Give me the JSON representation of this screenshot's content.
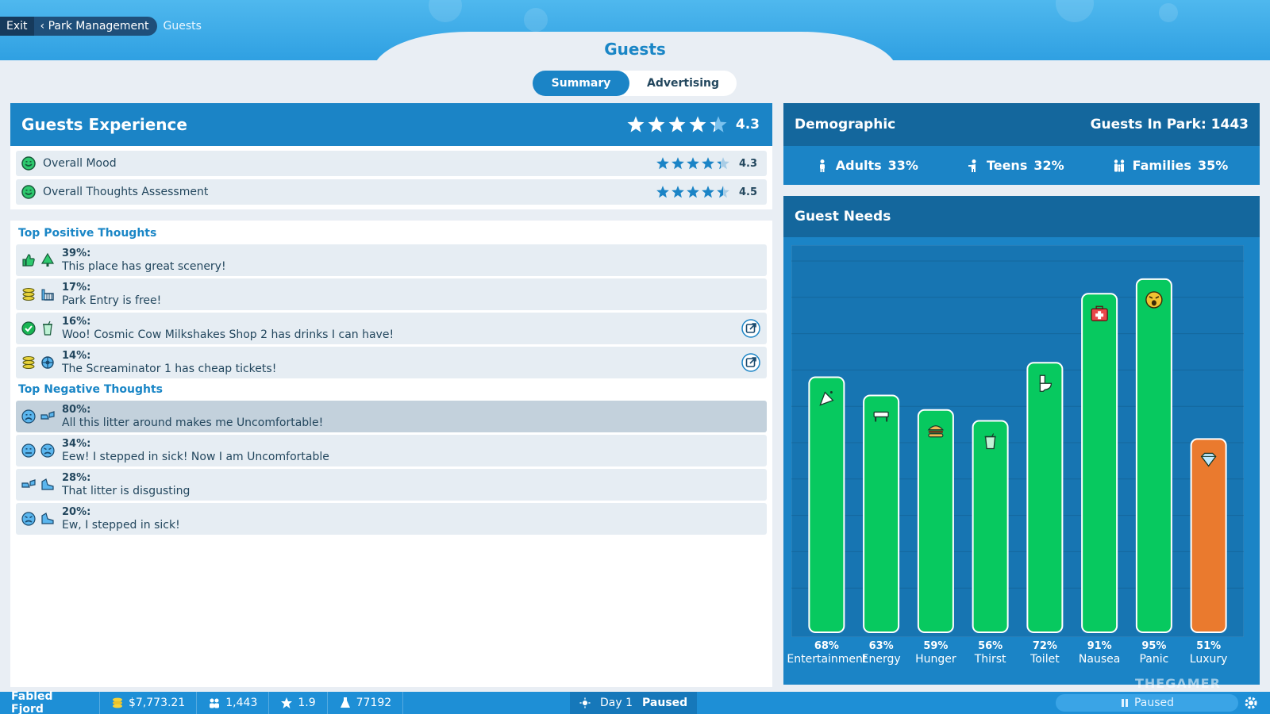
{
  "nav": {
    "exit_label": "Exit",
    "back_label": "Park Management",
    "current_label": "Guests"
  },
  "page_title": "Guests",
  "tabs": [
    {
      "label": "Summary",
      "active": true
    },
    {
      "label": "Advertising",
      "active": false
    }
  ],
  "experience": {
    "title": "Guests Experience",
    "rating": "4.3",
    "rating_value": 4.3,
    "rows": [
      {
        "label": "Overall Mood",
        "value": "4.3",
        "stars": 4.3
      },
      {
        "label": "Overall Thoughts Assessment",
        "value": "4.5",
        "stars": 4.5
      }
    ]
  },
  "thoughts": {
    "positive_title": "Top Positive Thoughts",
    "negative_title": "Top Negative Thoughts",
    "positive": [
      {
        "pct": "39%:",
        "text": "This place has great scenery!",
        "icons": [
          "thumbs-up-icon",
          "tree-icon"
        ],
        "link": false
      },
      {
        "pct": "17%:",
        "text": "Park Entry is free!",
        "icons": [
          "coins-icon",
          "gate-icon"
        ],
        "link": false
      },
      {
        "pct": "16%:",
        "text": "Woo! Cosmic Cow Milkshakes Shop 2 has drinks I can have!",
        "icons": [
          "checkmark-icon",
          "cup-icon"
        ],
        "link": true
      },
      {
        "pct": "14%:",
        "text": "The Screaminator 1 has cheap tickets!",
        "icons": [
          "coins-icon",
          "ride-icon"
        ],
        "link": true
      }
    ],
    "negative": [
      {
        "pct": "80%:",
        "text": "All this litter around makes me Uncomfortable!",
        "icons": [
          "sad-face-icon",
          "litter-icon"
        ],
        "link": false,
        "selected": true
      },
      {
        "pct": "34%:",
        "text": "Eew! I stepped in sick! Now I am Uncomfortable",
        "icons": [
          "meh-face-icon",
          "sick-face-icon"
        ],
        "link": false
      },
      {
        "pct": "28%:",
        "text": "That litter is disgusting",
        "icons": [
          "litter-icon",
          "shoe-icon"
        ],
        "link": false
      },
      {
        "pct": "20%:",
        "text": "Ew, I stepped in sick!",
        "icons": [
          "sick-face-icon",
          "shoe-icon"
        ],
        "link": false
      }
    ]
  },
  "demographic": {
    "title": "Demographic",
    "guests_label": "Guests In Park: 1443",
    "groups": [
      {
        "label": "Adults",
        "value": "33%",
        "icon": "adult-icon"
      },
      {
        "label": "Teens",
        "value": "32%",
        "icon": "teen-icon"
      },
      {
        "label": "Families",
        "value": "35%",
        "icon": "family-icon"
      }
    ]
  },
  "chart_data": {
    "type": "bar",
    "title": "Guest Needs",
    "categories": [
      "Entertainment",
      "Energy",
      "Hunger",
      "Thirst",
      "Toilet",
      "Nausea",
      "Panic",
      "Luxury"
    ],
    "values": [
      68,
      63,
      59,
      56,
      72,
      91,
      95,
      51
    ],
    "value_labels": [
      "68%",
      "63%",
      "59%",
      "56%",
      "72%",
      "91%",
      "95%",
      "51%"
    ],
    "bar_colors": [
      "#07c95f",
      "#07c95f",
      "#07c95f",
      "#07c95f",
      "#07c95f",
      "#07c95f",
      "#07c95f",
      "#ea7a2e"
    ],
    "ylim": [
      0,
      100
    ],
    "grid": true,
    "icons": [
      "party-popper-icon",
      "bench-icon",
      "burger-icon",
      "cup-icon",
      "toilet-icon",
      "first-aid-icon",
      "panic-face-icon",
      "diamond-icon"
    ]
  },
  "status_bar": {
    "park_name": "Fabled Fjord",
    "money": "$7,773.21",
    "guests": "1,443",
    "rating": "1.9",
    "research": "77192",
    "day": "Day 1",
    "state": "Paused",
    "pause_label": "Paused"
  },
  "watermark": "THEGAMER",
  "colors": {
    "accent": "#1b84c6",
    "panel_header": "#14679d",
    "bar_green": "#07c95f",
    "bar_orange": "#ea7a2e"
  }
}
